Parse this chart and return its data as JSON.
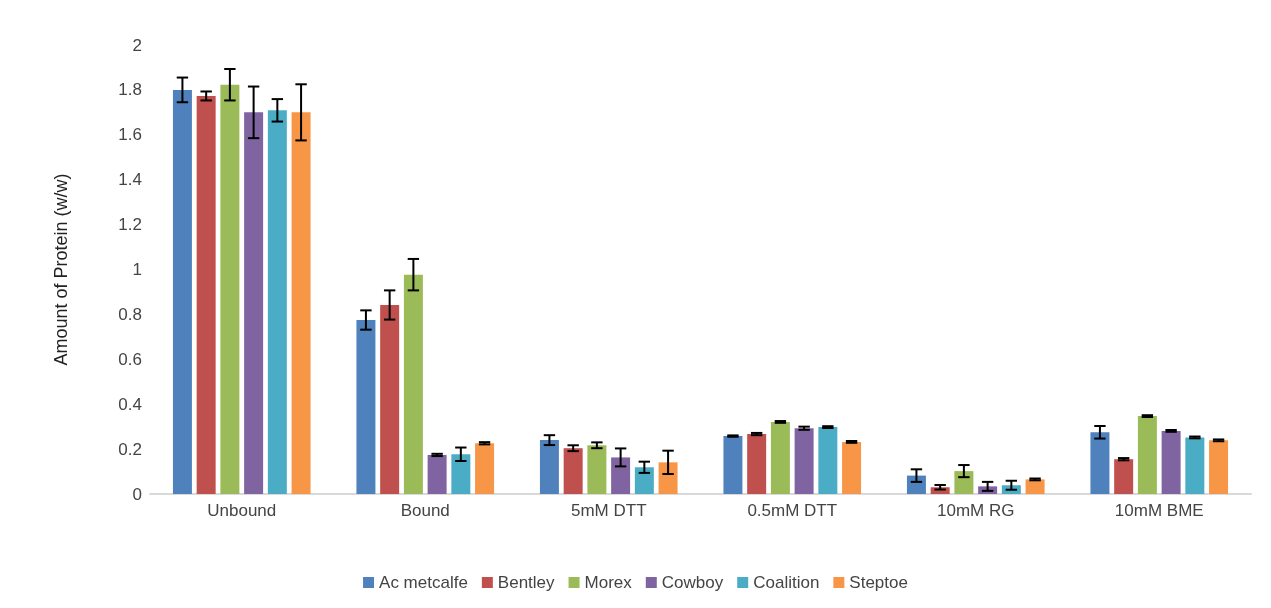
{
  "chart_data": {
    "type": "bar",
    "ylabel": "Amount of Protein (w/w)",
    "categories": [
      "Unbound",
      "Bound",
      "5mM DTT",
      "0.5mM DTT",
      "10mM RG",
      "10mM BME"
    ],
    "ylim": [
      0,
      2
    ],
    "yticks": [
      0,
      0.2,
      0.4,
      0.6,
      0.8,
      1,
      1.2,
      1.4,
      1.6,
      1.8,
      2
    ],
    "grid": false,
    "legend": "bottom",
    "series": [
      {
        "name": "Ac metcalfe",
        "color": "#4f81bd",
        "values": [
          1.8,
          0.775,
          0.24,
          0.258,
          0.082,
          0.275
        ],
        "errors": [
          0.055,
          0.043,
          0.022,
          0.003,
          0.028,
          0.028
        ]
      },
      {
        "name": "Bentley",
        "color": "#c0504d",
        "values": [
          1.773,
          0.842,
          0.204,
          0.267,
          0.03,
          0.155
        ],
        "errors": [
          0.02,
          0.065,
          0.013,
          0.005,
          0.01,
          0.005
        ]
      },
      {
        "name": "Morex",
        "color": "#9bbb59",
        "values": [
          1.823,
          0.977,
          0.217,
          0.321,
          0.102,
          0.347
        ],
        "errors": [
          0.07,
          0.07,
          0.013,
          0.004,
          0.027,
          0.004
        ]
      },
      {
        "name": "Cowboy",
        "color": "#8064a2",
        "values": [
          1.7,
          0.174,
          0.163,
          0.293,
          0.034,
          0.281
        ],
        "errors": [
          0.115,
          0.005,
          0.04,
          0.007,
          0.02,
          0.004
        ]
      },
      {
        "name": "Coalition",
        "color": "#4bacc6",
        "values": [
          1.709,
          0.177,
          0.119,
          0.298,
          0.039,
          0.252
        ],
        "errors": [
          0.05,
          0.03,
          0.025,
          0.004,
          0.02,
          0.004
        ]
      },
      {
        "name": "Steptoe",
        "color": "#f79646",
        "values": [
          1.7,
          0.226,
          0.141,
          0.232,
          0.065,
          0.239
        ],
        "errors": [
          0.125,
          0.005,
          0.052,
          0.004,
          0.004,
          0.004
        ]
      }
    ]
  }
}
